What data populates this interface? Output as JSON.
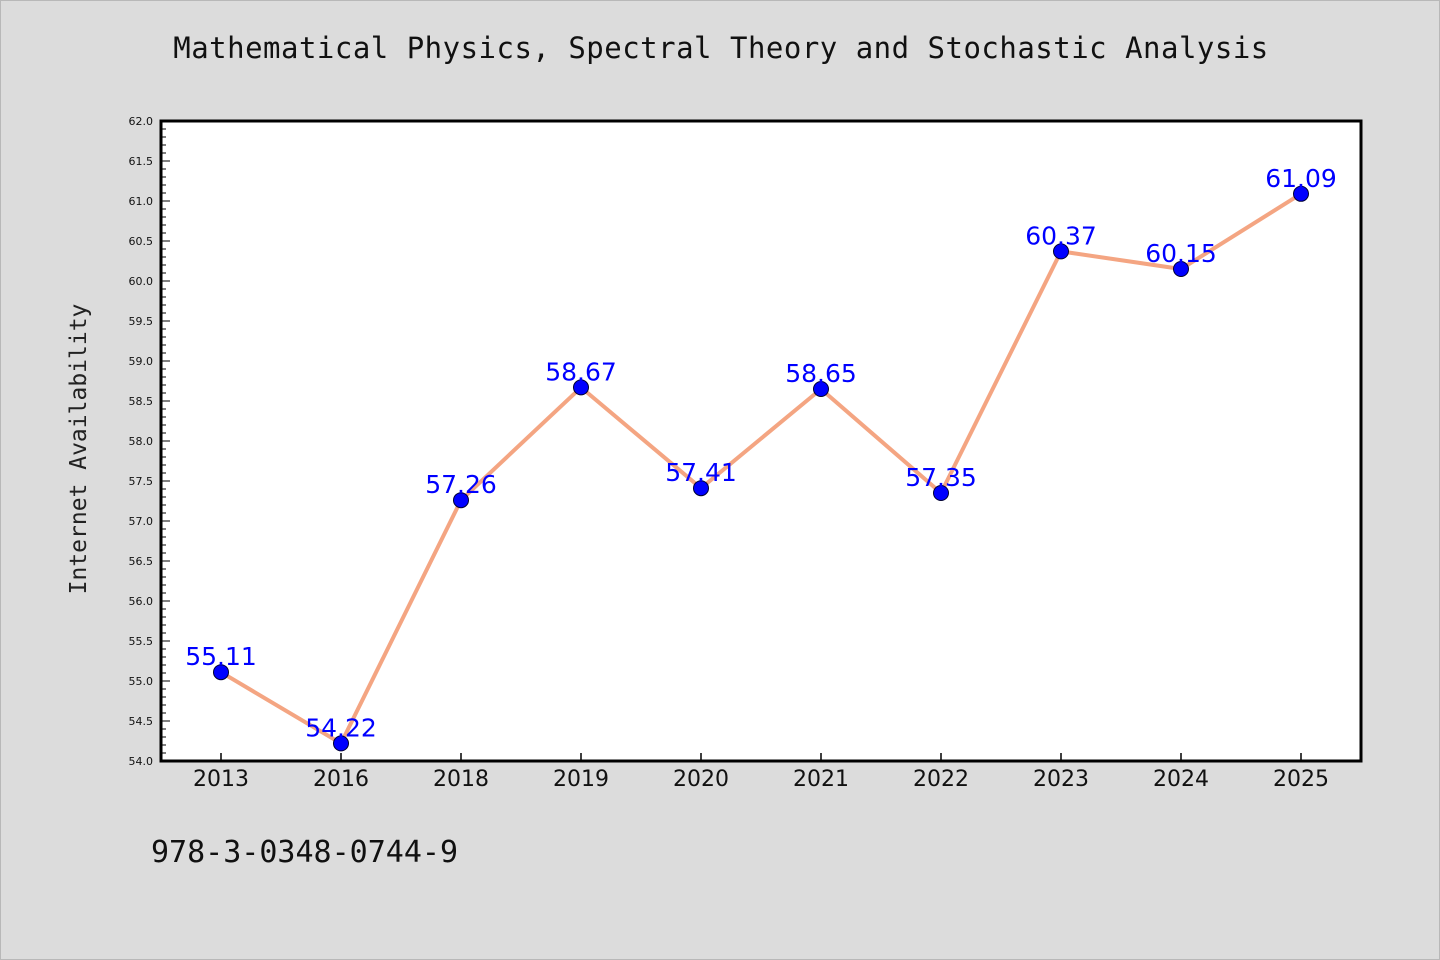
{
  "chart_data": {
    "type": "line",
    "title": "Mathematical Physics, Spectral Theory and Stochastic Analysis",
    "xlabel": "",
    "ylabel": "Internet Availability",
    "categories": [
      "2013",
      "2016",
      "2018",
      "2019",
      "2020",
      "2021",
      "2022",
      "2023",
      "2024",
      "2025"
    ],
    "series": [
      {
        "values": [
          55.11,
          54.22,
          57.26,
          58.67,
          57.41,
          58.65,
          57.35,
          60.37,
          60.15,
          61.09
        ],
        "data_labels": [
          "55.11",
          "54.22",
          "57.26",
          "58.67",
          "57.41",
          "58.65",
          "57.35",
          "60.37",
          "60.15",
          "61.09"
        ],
        "line_color": "#f4a582",
        "marker_color": "#0000ff"
      }
    ],
    "ylim": [
      54.0,
      62.0
    ],
    "yticks": [
      "54.0",
      "54.5",
      "55.0",
      "55.5",
      "56.0",
      "56.5",
      "57.0",
      "57.5",
      "58.0",
      "58.5",
      "59.0",
      "59.5",
      "60.0",
      "60.5",
      "61.0",
      "61.5",
      "62.0"
    ],
    "grid": false,
    "legend": "none"
  },
  "footer": {
    "isbn": "978-3-0348-0744-9"
  },
  "colors": {
    "background": "#dcdcdc",
    "plot_background": "#ffffff",
    "line": "#f4a582",
    "marker": "#0000ff",
    "data_label": "#0000ff"
  }
}
